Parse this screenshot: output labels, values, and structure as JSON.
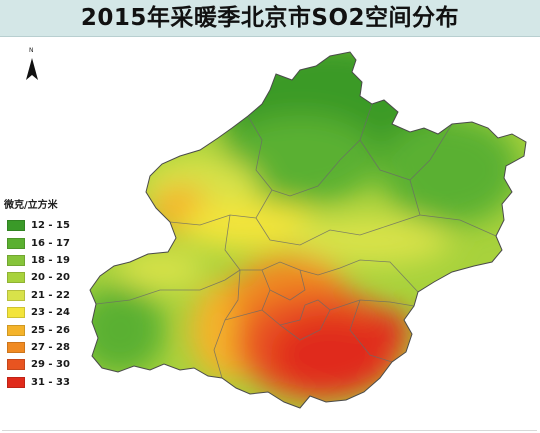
{
  "title": "2015年采暖季北京市SO2空间分布",
  "north_arrow": {
    "label": "N"
  },
  "legend": {
    "title": "微克/立方米",
    "items": [
      {
        "label": "12 - 15",
        "color": "#3a9a28"
      },
      {
        "label": "16 - 17",
        "color": "#5ab030"
      },
      {
        "label": "18 - 19",
        "color": "#86c43a"
      },
      {
        "label": "20 - 20",
        "color": "#a8d23c"
      },
      {
        "label": "21 - 22",
        "color": "#d8e24a"
      },
      {
        "label": "23 - 24",
        "color": "#f3e43a"
      },
      {
        "label": "25 - 26",
        "color": "#f4b32a"
      },
      {
        "label": "27 - 28",
        "color": "#f08a22"
      },
      {
        "label": "29 - 30",
        "color": "#e85420"
      },
      {
        "label": "31 - 33",
        "color": "#e02a1a"
      }
    ]
  }
}
